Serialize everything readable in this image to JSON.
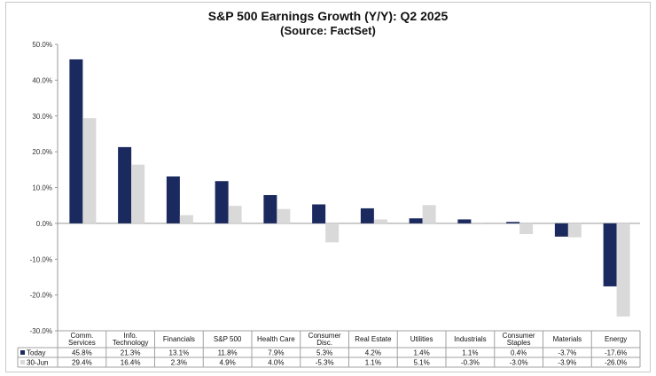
{
  "chart_data": {
    "type": "bar",
    "title": "S&P 500 Earnings Growth (Y/Y): Q2 2025",
    "subtitle": "(Source: FactSet)",
    "categories": [
      [
        "Comm.",
        "Services"
      ],
      [
        "Info.",
        "Technology"
      ],
      [
        "Financials"
      ],
      [
        "S&P 500"
      ],
      [
        "Health Care"
      ],
      [
        "Consumer",
        "Disc."
      ],
      [
        "Real Estate"
      ],
      [
        "Utilities"
      ],
      [
        "Industrials"
      ],
      [
        "Consumer",
        "Staples"
      ],
      [
        "Materials"
      ],
      [
        "Energy"
      ]
    ],
    "series": [
      {
        "name": "Today",
        "color": "#1b2a5e",
        "values": [
          45.8,
          21.3,
          13.1,
          11.8,
          7.9,
          5.3,
          4.2,
          1.4,
          1.1,
          0.4,
          -3.7,
          -17.6
        ],
        "labels": [
          "45.8%",
          "21.3%",
          "13.1%",
          "11.8%",
          "7.9%",
          "5.3%",
          "4.2%",
          "1.4%",
          "1.1%",
          "0.4%",
          "-3.7%",
          "-17.6%"
        ]
      },
      {
        "name": "30-Jun",
        "color": "#d9d9d9",
        "values": [
          29.4,
          16.4,
          2.3,
          4.9,
          4.0,
          -5.3,
          1.1,
          5.1,
          -0.3,
          -3.0,
          -3.9,
          -26.0
        ],
        "labels": [
          "29.4%",
          "16.4%",
          "2.3%",
          "4.9%",
          "4.0%",
          "-5.3%",
          "1.1%",
          "5.1%",
          "-0.3%",
          "-3.0%",
          "-3.9%",
          "-26.0%"
        ]
      }
    ],
    "ylim": [
      -30,
      50
    ],
    "yticks": [
      50,
      40,
      30,
      20,
      10,
      0,
      -10,
      -20,
      -30
    ],
    "ytick_labels": [
      "50.0%",
      "40.0%",
      "30.0%",
      "20.0%",
      "10.0%",
      "0.0%",
      "-10.0%",
      "-20.0%",
      "-30.0%"
    ],
    "grid": false,
    "legend": "data-table-rows"
  }
}
